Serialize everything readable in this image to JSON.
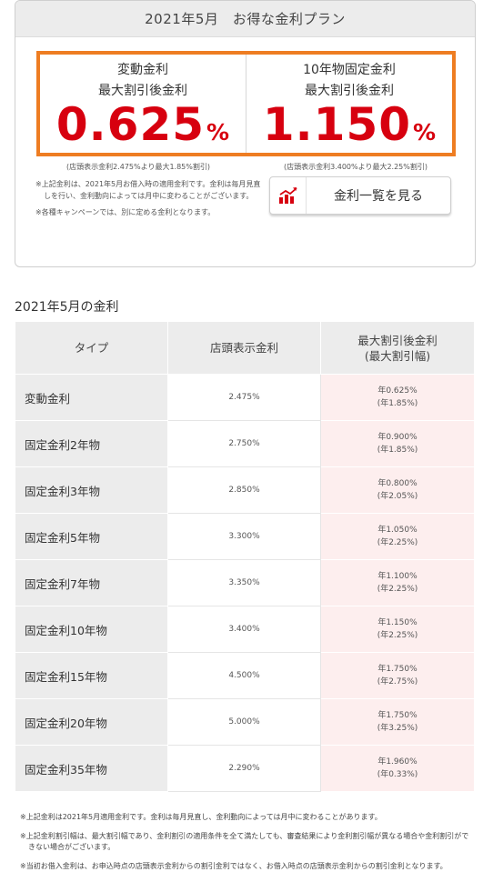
{
  "plan": {
    "title": "2021年5月　お得な金利プラン",
    "variable": {
      "label_line1": "変動金利",
      "label_line2": "最大割引後金利",
      "rate": "0.625",
      "unit": "%",
      "note": "(店頭表示金利2.475%より最大1.85%割引)"
    },
    "fixed10": {
      "label_line1": "10年物固定金利",
      "label_line2": "最大割引後金利",
      "rate": "1.150",
      "unit": "%",
      "note": "(店頭表示金利3.400%より最大2.25%割引)"
    },
    "notes": [
      "※上記金利は、2021年5月お借入時の適用金利です。金利は毎月見直しを行い、金利動向によっては月中に変わることがございます。",
      "※各種キャンペーンでは、別に定める金利となります。"
    ],
    "list_button": {
      "label": "金利一覧を見る",
      "icon": "rate-chart-icon"
    }
  },
  "table": {
    "section_title": "2021年5月の金利",
    "headers": {
      "type": "タイプ",
      "store": "店頭表示金利",
      "disc_line1": "最大割引後金利",
      "disc_line2": "(最大割引幅)"
    },
    "rows": [
      {
        "type": "変動金利",
        "store": "2.475%",
        "disc": "年0.625%",
        "width": "(年1.85%)"
      },
      {
        "type": "固定金利2年物",
        "store": "2.750%",
        "disc": "年0.900%",
        "width": "(年1.85%)"
      },
      {
        "type": "固定金利3年物",
        "store": "2.850%",
        "disc": "年0.800%",
        "width": "(年2.05%)"
      },
      {
        "type": "固定金利5年物",
        "store": "3.300%",
        "disc": "年1.050%",
        "width": "(年2.25%)"
      },
      {
        "type": "固定金利7年物",
        "store": "3.350%",
        "disc": "年1.100%",
        "width": "(年2.25%)"
      },
      {
        "type": "固定金利10年物",
        "store": "3.400%",
        "disc": "年1.150%",
        "width": "(年2.25%)"
      },
      {
        "type": "固定金利15年物",
        "store": "4.500%",
        "disc": "年1.750%",
        "width": "(年2.75%)"
      },
      {
        "type": "固定金利20年物",
        "store": "5.000%",
        "disc": "年1.750%",
        "width": "(年3.25%)"
      },
      {
        "type": "固定金利35年物",
        "store": "2.290%",
        "disc": "年1.960%",
        "width": "(年0.33%)"
      }
    ]
  },
  "footnotes": [
    "※上記金利は2021年5月適用金利です。金利は毎月見直し、金利動向によっては月中に変わることがあります。",
    "※上記金利割引幅は、最大割引幅であり、金利割引の適用条件を全て満たしても、審査結果により金利割引幅が異なる場合や金利割引ができない場合がございます。",
    "※当初お借入金利は、お申込時点の店頭表示金利からの割引金利ではなく、お借入時点の店頭表示金利からの割引金利となります。"
  ],
  "colors": {
    "accent_orange": "#ee7d22",
    "rate_red": "#d7000f",
    "discount_bg": "#fdeeee",
    "header_gray": "#ececec"
  }
}
